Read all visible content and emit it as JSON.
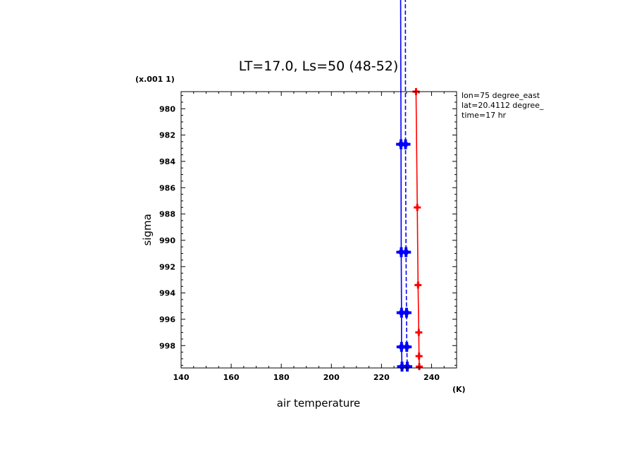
{
  "chart_data": {
    "type": "line",
    "title": "LT=17.0, Ls=50 (48-52)",
    "xlabel": "air temperature",
    "ylabel": "sigma",
    "x_unit": "(K)",
    "y_scale_note": "(x.001 1)",
    "xlim": [
      140,
      250
    ],
    "ylim": [
      999.7,
      978.7
    ],
    "x_ticks": [
      140,
      160,
      180,
      200,
      220,
      240
    ],
    "y_ticks": [
      980,
      982,
      984,
      986,
      988,
      990,
      992,
      994,
      996,
      998
    ],
    "annotations": [
      "lon=75 degree_east",
      "lat=20.4112 degree_",
      "time=17 hr"
    ],
    "grid": false,
    "series": [
      {
        "color": "#0000ff",
        "style": "solid",
        "marker_size": "large",
        "y": [
          960.0,
          982.7,
          990.9,
          995.5,
          998.1,
          999.6
        ],
        "values": [
          227.5,
          227.8,
          227.9,
          228.0,
          228.0,
          228.2
        ]
      },
      {
        "color": "#0000ff",
        "style": "dashed",
        "marker_size": "large",
        "y": [
          960.0,
          982.7,
          990.9,
          995.5,
          998.1,
          999.6
        ],
        "values": [
          229.5,
          229.6,
          229.8,
          230.0,
          230.1,
          230.3
        ]
      },
      {
        "color": "#ff0000",
        "style": "solid",
        "marker_size": "small",
        "y": [
          978.7,
          987.5,
          993.4,
          997.0,
          998.8,
          999.6
        ],
        "values": [
          233.8,
          234.3,
          234.6,
          234.9,
          235.0,
          235.1
        ]
      }
    ]
  }
}
